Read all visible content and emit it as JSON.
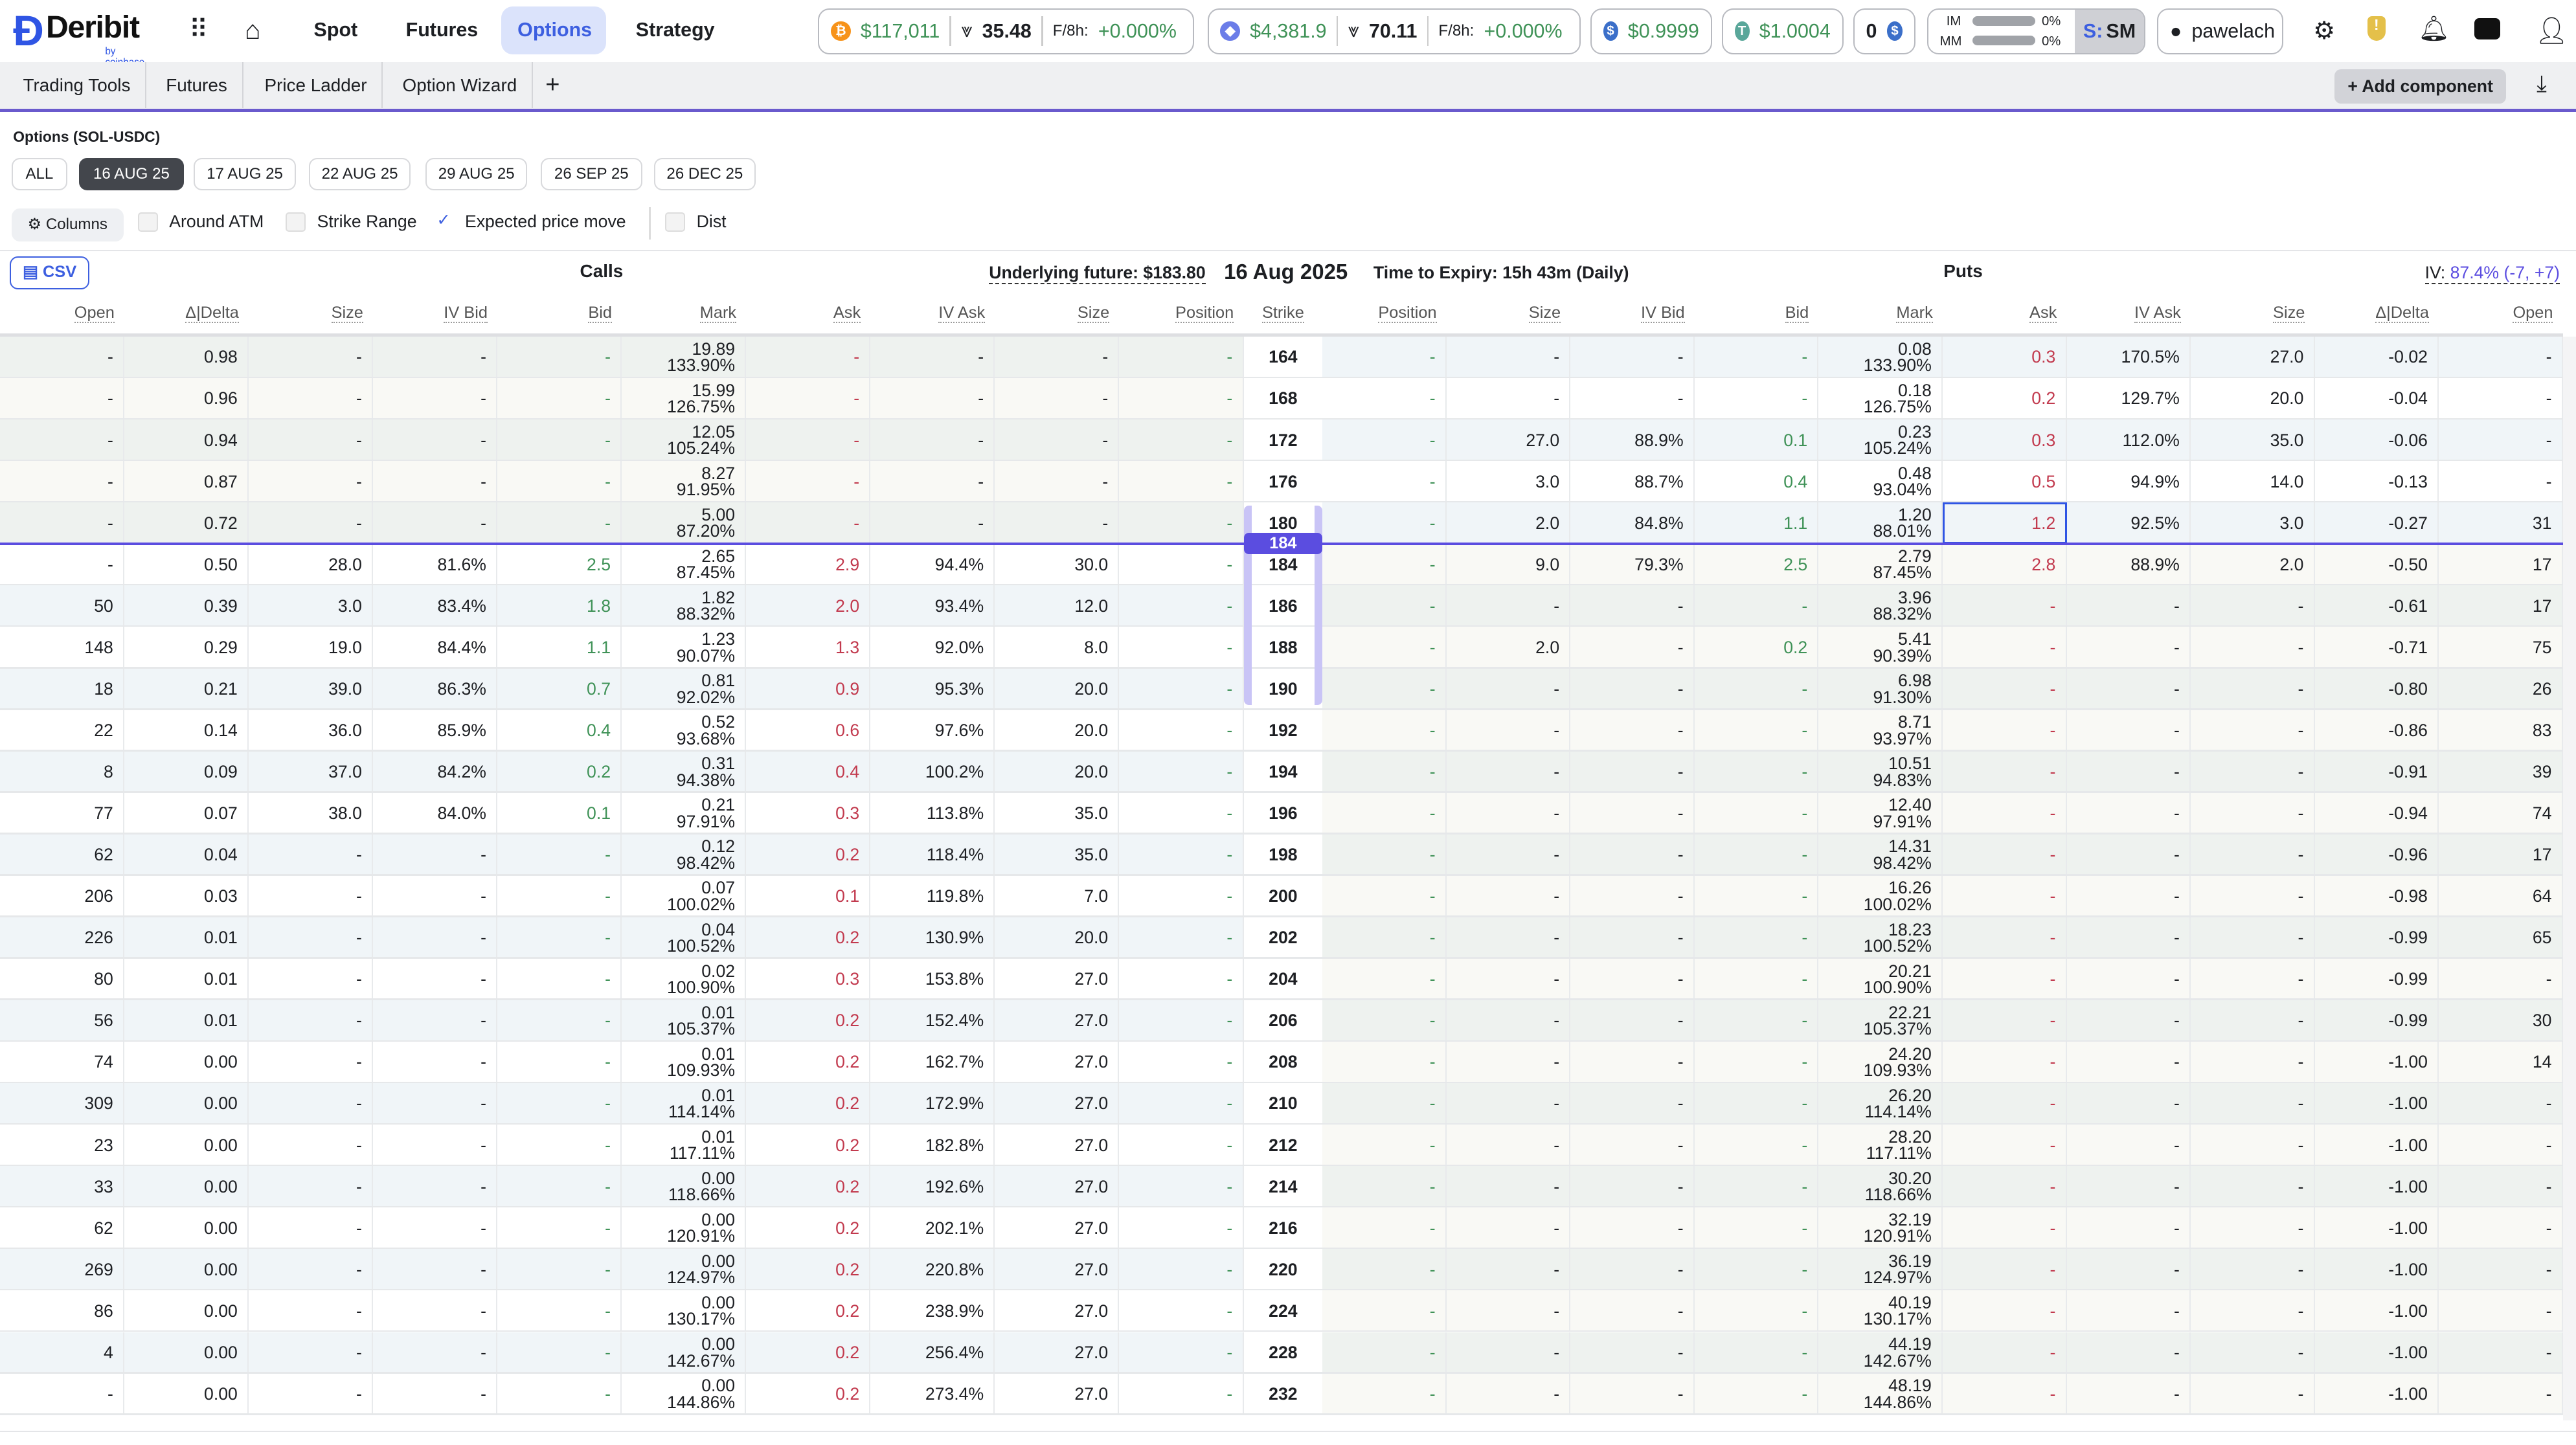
{
  "brand": {
    "name": "Deribit",
    "sub": "by coinbase"
  },
  "nav": [
    "Spot",
    "Futures",
    "Options",
    "Strategy"
  ],
  "tickers": [
    {
      "coin": "btc-icon",
      "color": "#f7931a",
      "price": "$117,011",
      "dvol": "35.48",
      "funding_label": "F/8h:",
      "funding": "+0.000%"
    },
    {
      "coin": "eth-icon",
      "color": "#6b7de8",
      "price": "$4,381.9",
      "dvol": "70.11",
      "funding_label": "F/8h:",
      "funding": "+0.000%"
    },
    {
      "coin": "usdc-icon",
      "color": "#3b6fc9",
      "price": "$0.9999"
    },
    {
      "coin": "usdt-icon",
      "color": "#5aa79a",
      "price": "$1.0004"
    },
    {
      "count": "0"
    }
  ],
  "margin": {
    "im_label": "IM",
    "im": "0%",
    "mm_label": "MM",
    "mm": "0%",
    "mode_prefix": "S:",
    "mode": "SM"
  },
  "user": "pawelach",
  "tabs": [
    "Trading Tools",
    "Futures",
    "Price Ladder",
    "Option Wizard"
  ],
  "add_component": "Add component",
  "title": "Options (SOL-USDC)",
  "expiries": [
    "ALL",
    "16 AUG 25",
    "17 AUG 25",
    "22 AUG 25",
    "29 AUG 25",
    "26 SEP 25",
    "26 DEC 25"
  ],
  "selected_expiry": "16 AUG 25",
  "filters": {
    "columns": "Columns",
    "around_atm": "Around ATM",
    "strike_range": "Strike Range",
    "expected_move": "Expected price move",
    "dist": "Dist",
    "expected_move_checked": true
  },
  "csv": "CSV",
  "calls_label": "Calls",
  "puts_label": "Puts",
  "underlying": "Underlying future: $183.80",
  "expiry_date": "16 Aug 2025",
  "tte": "Time to Expiry: 15h 43m (Daily)",
  "iv": {
    "label": "IV:",
    "value": "87.4% (-7, +7)"
  },
  "atm_badge": "184",
  "call_columns": [
    "Open",
    "Δ|Delta",
    "Size",
    "IV Bid",
    "Bid",
    "Mark",
    "Ask",
    "IV Ask",
    "Size",
    "Position"
  ],
  "strike_column": "Strike",
  "put_columns": [
    "Position",
    "Size",
    "IV Bid",
    "Bid",
    "Mark",
    "Ask",
    "IV Ask",
    "Size",
    "Δ|Delta",
    "Open"
  ],
  "rows": [
    {
      "strike": "164",
      "call": [
        "-",
        "0.98",
        "-",
        "-",
        "-",
        "19.89",
        "133.90%",
        "-",
        "-",
        "-",
        "-"
      ],
      "put": [
        "-",
        "-",
        "-",
        "-",
        "0.08",
        "133.90%",
        "0.3",
        "170.5%",
        "27.0",
        "-0.02",
        "-"
      ]
    },
    {
      "strike": "168",
      "call": [
        "-",
        "0.96",
        "-",
        "-",
        "-",
        "15.99",
        "126.75%",
        "-",
        "-",
        "-",
        "-"
      ],
      "put": [
        "-",
        "-",
        "-",
        "-",
        "0.18",
        "126.75%",
        "0.2",
        "129.7%",
        "20.0",
        "-0.04",
        "-"
      ]
    },
    {
      "strike": "172",
      "call": [
        "-",
        "0.94",
        "-",
        "-",
        "-",
        "12.05",
        "105.24%",
        "-",
        "-",
        "-",
        "-"
      ],
      "put": [
        "-",
        "27.0",
        "88.9%",
        "0.1",
        "0.23",
        "105.24%",
        "0.3",
        "112.0%",
        "35.0",
        "-0.06",
        "-"
      ]
    },
    {
      "strike": "176",
      "call": [
        "-",
        "0.87",
        "-",
        "-",
        "-",
        "8.27",
        "91.95%",
        "-",
        "-",
        "-",
        "-"
      ],
      "put": [
        "-",
        "3.0",
        "88.7%",
        "0.4",
        "0.48",
        "93.04%",
        "0.5",
        "94.9%",
        "14.0",
        "-0.13",
        "-"
      ]
    },
    {
      "strike": "180",
      "call": [
        "-",
        "0.72",
        "-",
        "-",
        "-",
        "5.00",
        "87.20%",
        "-",
        "-",
        "-",
        "-"
      ],
      "put": [
        "-",
        "2.0",
        "84.8%",
        "1.1",
        "1.20",
        "88.01%",
        "1.2",
        "92.5%",
        "3.0",
        "-0.27",
        "31"
      ]
    },
    {
      "strike": "184",
      "call": [
        "-",
        "0.50",
        "28.0",
        "81.6%",
        "2.5",
        "2.65",
        "87.45%",
        "2.9",
        "94.4%",
        "30.0",
        "-"
      ],
      "put": [
        "-",
        "9.0",
        "79.3%",
        "2.5",
        "2.79",
        "87.45%",
        "2.8",
        "88.9%",
        "2.0",
        "-0.50",
        "17"
      ]
    },
    {
      "strike": "186",
      "call": [
        "50",
        "0.39",
        "3.0",
        "83.4%",
        "1.8",
        "1.82",
        "88.32%",
        "2.0",
        "93.4%",
        "12.0",
        "-"
      ],
      "put": [
        "-",
        "-",
        "-",
        "-",
        "3.96",
        "88.32%",
        "-",
        "-",
        "-",
        "-0.61",
        "17"
      ]
    },
    {
      "strike": "188",
      "call": [
        "148",
        "0.29",
        "19.0",
        "84.4%",
        "1.1",
        "1.23",
        "90.07%",
        "1.3",
        "92.0%",
        "8.0",
        "-"
      ],
      "put": [
        "-",
        "2.0",
        "-",
        "0.2",
        "5.41",
        "90.39%",
        "-",
        "-",
        "-",
        "-0.71",
        "75"
      ]
    },
    {
      "strike": "190",
      "call": [
        "18",
        "0.21",
        "39.0",
        "86.3%",
        "0.7",
        "0.81",
        "92.02%",
        "0.9",
        "95.3%",
        "20.0",
        "-"
      ],
      "put": [
        "-",
        "-",
        "-",
        "-",
        "6.98",
        "91.30%",
        "-",
        "-",
        "-",
        "-0.80",
        "26"
      ]
    },
    {
      "strike": "192",
      "call": [
        "22",
        "0.14",
        "36.0",
        "85.9%",
        "0.4",
        "0.52",
        "93.68%",
        "0.6",
        "97.6%",
        "20.0",
        "-"
      ],
      "put": [
        "-",
        "-",
        "-",
        "-",
        "8.71",
        "93.97%",
        "-",
        "-",
        "-",
        "-0.86",
        "83"
      ]
    },
    {
      "strike": "194",
      "call": [
        "8",
        "0.09",
        "37.0",
        "84.2%",
        "0.2",
        "0.31",
        "94.38%",
        "0.4",
        "100.2%",
        "20.0",
        "-"
      ],
      "put": [
        "-",
        "-",
        "-",
        "-",
        "10.51",
        "94.83%",
        "-",
        "-",
        "-",
        "-0.91",
        "39"
      ]
    },
    {
      "strike": "196",
      "call": [
        "77",
        "0.07",
        "38.0",
        "84.0%",
        "0.1",
        "0.21",
        "97.91%",
        "0.3",
        "113.8%",
        "35.0",
        "-"
      ],
      "put": [
        "-",
        "-",
        "-",
        "-",
        "12.40",
        "97.91%",
        "-",
        "-",
        "-",
        "-0.94",
        "74"
      ]
    },
    {
      "strike": "198",
      "call": [
        "62",
        "0.04",
        "-",
        "-",
        "-",
        "0.12",
        "98.42%",
        "0.2",
        "118.4%",
        "35.0",
        "-"
      ],
      "put": [
        "-",
        "-",
        "-",
        "-",
        "14.31",
        "98.42%",
        "-",
        "-",
        "-",
        "-0.96",
        "17"
      ]
    },
    {
      "strike": "200",
      "call": [
        "206",
        "0.03",
        "-",
        "-",
        "-",
        "0.07",
        "100.02%",
        "0.1",
        "119.8%",
        "7.0",
        "-"
      ],
      "put": [
        "-",
        "-",
        "-",
        "-",
        "16.26",
        "100.02%",
        "-",
        "-",
        "-",
        "-0.98",
        "64"
      ]
    },
    {
      "strike": "202",
      "call": [
        "226",
        "0.01",
        "-",
        "-",
        "-",
        "0.04",
        "100.52%",
        "0.2",
        "130.9%",
        "20.0",
        "-"
      ],
      "put": [
        "-",
        "-",
        "-",
        "-",
        "18.23",
        "100.52%",
        "-",
        "-",
        "-",
        "-0.99",
        "65"
      ]
    },
    {
      "strike": "204",
      "call": [
        "80",
        "0.01",
        "-",
        "-",
        "-",
        "0.02",
        "100.90%",
        "0.3",
        "153.8%",
        "27.0",
        "-"
      ],
      "put": [
        "-",
        "-",
        "-",
        "-",
        "20.21",
        "100.90%",
        "-",
        "-",
        "-",
        "-0.99",
        "-"
      ]
    },
    {
      "strike": "206",
      "call": [
        "56",
        "0.01",
        "-",
        "-",
        "-",
        "0.01",
        "105.37%",
        "0.2",
        "152.4%",
        "27.0",
        "-"
      ],
      "put": [
        "-",
        "-",
        "-",
        "-",
        "22.21",
        "105.37%",
        "-",
        "-",
        "-",
        "-0.99",
        "30"
      ]
    },
    {
      "strike": "208",
      "call": [
        "74",
        "0.00",
        "-",
        "-",
        "-",
        "0.01",
        "109.93%",
        "0.2",
        "162.7%",
        "27.0",
        "-"
      ],
      "put": [
        "-",
        "-",
        "-",
        "-",
        "24.20",
        "109.93%",
        "-",
        "-",
        "-",
        "-1.00",
        "14"
      ]
    },
    {
      "strike": "210",
      "call": [
        "309",
        "0.00",
        "-",
        "-",
        "-",
        "0.01",
        "114.14%",
        "0.2",
        "172.9%",
        "27.0",
        "-"
      ],
      "put": [
        "-",
        "-",
        "-",
        "-",
        "26.20",
        "114.14%",
        "-",
        "-",
        "-",
        "-1.00",
        "-"
      ]
    },
    {
      "strike": "212",
      "call": [
        "23",
        "0.00",
        "-",
        "-",
        "-",
        "0.01",
        "117.11%",
        "0.2",
        "182.8%",
        "27.0",
        "-"
      ],
      "put": [
        "-",
        "-",
        "-",
        "-",
        "28.20",
        "117.11%",
        "-",
        "-",
        "-",
        "-1.00",
        "-"
      ]
    },
    {
      "strike": "214",
      "call": [
        "33",
        "0.00",
        "-",
        "-",
        "-",
        "0.00",
        "118.66%",
        "0.2",
        "192.6%",
        "27.0",
        "-"
      ],
      "put": [
        "-",
        "-",
        "-",
        "-",
        "30.20",
        "118.66%",
        "-",
        "-",
        "-",
        "-1.00",
        "-"
      ]
    },
    {
      "strike": "216",
      "call": [
        "62",
        "0.00",
        "-",
        "-",
        "-",
        "0.00",
        "120.91%",
        "0.2",
        "202.1%",
        "27.0",
        "-"
      ],
      "put": [
        "-",
        "-",
        "-",
        "-",
        "32.19",
        "120.91%",
        "-",
        "-",
        "-",
        "-1.00",
        "-"
      ]
    },
    {
      "strike": "220",
      "call": [
        "269",
        "0.00",
        "-",
        "-",
        "-",
        "0.00",
        "124.97%",
        "0.2",
        "220.8%",
        "27.0",
        "-"
      ],
      "put": [
        "-",
        "-",
        "-",
        "-",
        "36.19",
        "124.97%",
        "-",
        "-",
        "-",
        "-1.00",
        "-"
      ]
    },
    {
      "strike": "224",
      "call": [
        "86",
        "0.00",
        "-",
        "-",
        "-",
        "0.00",
        "130.17%",
        "0.2",
        "238.9%",
        "27.0",
        "-"
      ],
      "put": [
        "-",
        "-",
        "-",
        "-",
        "40.19",
        "130.17%",
        "-",
        "-",
        "-",
        "-1.00",
        "-"
      ]
    },
    {
      "strike": "228",
      "call": [
        "4",
        "0.00",
        "-",
        "-",
        "-",
        "0.00",
        "142.67%",
        "0.2",
        "256.4%",
        "27.0",
        "-"
      ],
      "put": [
        "-",
        "-",
        "-",
        "-",
        "44.19",
        "142.67%",
        "-",
        "-",
        "-",
        "-1.00",
        "-"
      ]
    },
    {
      "strike": "232",
      "call": [
        "-",
        "0.00",
        "-",
        "-",
        "-",
        "0.00",
        "144.86%",
        "0.2",
        "273.4%",
        "27.0",
        "-"
      ],
      "put": [
        "-",
        "-",
        "-",
        "-",
        "48.19",
        "144.86%",
        "-",
        "-",
        "-",
        "-1.00",
        "-"
      ]
    }
  ],
  "colors": {
    "accent": "#5b4de0",
    "bid": "#3f9257",
    "ask": "#c23a4e",
    "itm_even": "#eef2ef",
    "itm_odd": "#f9f9f5",
    "otm_even": "#f0f5f8",
    "otm_odd": "#ffffff"
  }
}
